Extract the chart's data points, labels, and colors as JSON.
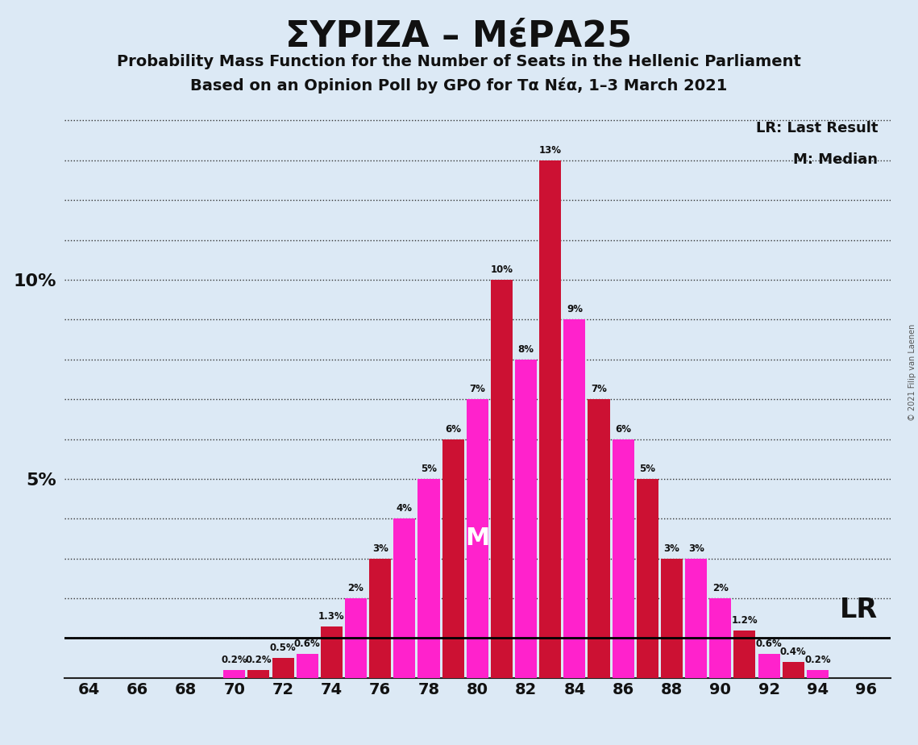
{
  "title": "ΣΥΡΙΖΑ – ΜέΡΑ25",
  "subtitle1": "Probability Mass Function for the Number of Seats in the Hellenic Parliament",
  "subtitle2": "Based on an Opinion Poll by GPO for Τα Νέα, 1–3 March 2021",
  "copyright": "© 2021 Filip van Laenen",
  "bar_data": [
    {
      "seat": 64,
      "prob": 0.0,
      "color": "red"
    },
    {
      "seat": 65,
      "prob": 0.0,
      "color": "pink"
    },
    {
      "seat": 66,
      "prob": 0.0,
      "color": "red"
    },
    {
      "seat": 67,
      "prob": 0.0,
      "color": "pink"
    },
    {
      "seat": 68,
      "prob": 0.0,
      "color": "red"
    },
    {
      "seat": 69,
      "prob": 0.0,
      "color": "pink"
    },
    {
      "seat": 70,
      "prob": 0.2,
      "color": "pink"
    },
    {
      "seat": 71,
      "prob": 0.2,
      "color": "red"
    },
    {
      "seat": 72,
      "prob": 0.5,
      "color": "red"
    },
    {
      "seat": 73,
      "prob": 0.6,
      "color": "pink"
    },
    {
      "seat": 74,
      "prob": 1.3,
      "color": "red"
    },
    {
      "seat": 75,
      "prob": 2.0,
      "color": "pink"
    },
    {
      "seat": 76,
      "prob": 3.0,
      "color": "red"
    },
    {
      "seat": 77,
      "prob": 4.0,
      "color": "pink"
    },
    {
      "seat": 78,
      "prob": 5.0,
      "color": "pink"
    },
    {
      "seat": 79,
      "prob": 6.0,
      "color": "red"
    },
    {
      "seat": 80,
      "prob": 7.0,
      "color": "pink"
    },
    {
      "seat": 81,
      "prob": 10.0,
      "color": "red"
    },
    {
      "seat": 82,
      "prob": 8.0,
      "color": "pink"
    },
    {
      "seat": 83,
      "prob": 13.0,
      "color": "red"
    },
    {
      "seat": 84,
      "prob": 9.0,
      "color": "pink"
    },
    {
      "seat": 85,
      "prob": 7.0,
      "color": "red"
    },
    {
      "seat": 86,
      "prob": 6.0,
      "color": "pink"
    },
    {
      "seat": 87,
      "prob": 5.0,
      "color": "red"
    },
    {
      "seat": 88,
      "prob": 3.0,
      "color": "red"
    },
    {
      "seat": 89,
      "prob": 3.0,
      "color": "pink"
    },
    {
      "seat": 90,
      "prob": 2.0,
      "color": "pink"
    },
    {
      "seat": 91,
      "prob": 1.2,
      "color": "red"
    },
    {
      "seat": 92,
      "prob": 0.6,
      "color": "pink"
    },
    {
      "seat": 93,
      "prob": 0.4,
      "color": "red"
    },
    {
      "seat": 94,
      "prob": 0.2,
      "color": "pink"
    },
    {
      "seat": 95,
      "prob": 0.0,
      "color": "red"
    },
    {
      "seat": 96,
      "prob": 0.0,
      "color": "pink"
    }
  ],
  "median_seat": 80,
  "lr_seat": 87,
  "lr_y": 1.0,
  "background_color": "#dce9f5",
  "bar_color_red": "#cc1133",
  "bar_color_pink": "#ff22cc",
  "ylim": [
    0,
    14.5
  ],
  "xticks": [
    64,
    66,
    68,
    70,
    72,
    74,
    76,
    78,
    80,
    82,
    84,
    86,
    88,
    90,
    92,
    94,
    96
  ]
}
